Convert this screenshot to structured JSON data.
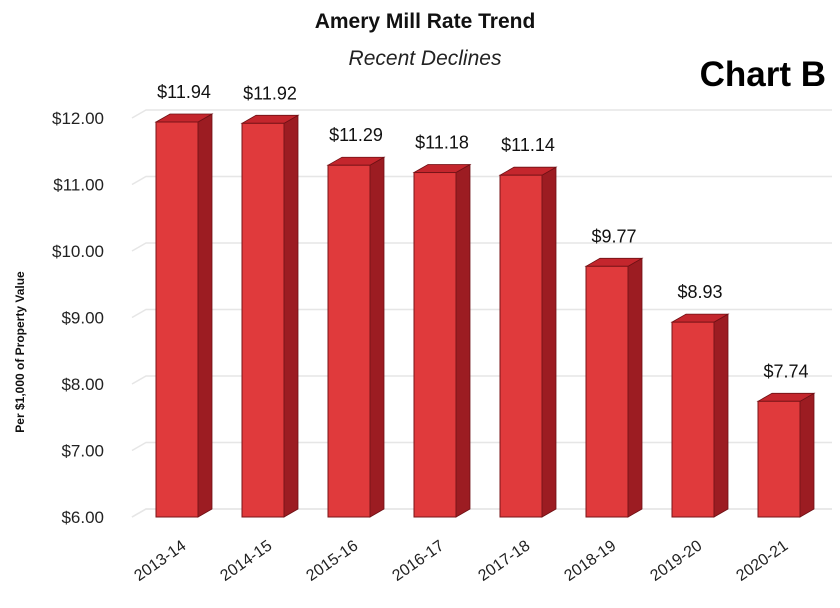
{
  "chart_data": {
    "type": "bar",
    "title": "Amery Mill Rate Trend",
    "subtitle": "Recent Declines",
    "badge": "Chart B",
    "ylabel": "Per $1,000  of Property Value",
    "xlabel": "",
    "categories": [
      "2013-14",
      "2014-15",
      "2015-16",
      "2016-17",
      "2017-18",
      "2018-19",
      "2019-20",
      "2020-21"
    ],
    "values": [
      11.94,
      11.92,
      11.29,
      11.18,
      11.14,
      9.77,
      8.93,
      7.74
    ],
    "value_labels": [
      "$11.94",
      "$11.92",
      "$11.29",
      "$11.18",
      "$11.14",
      "$9.77",
      "$8.93",
      "$7.74"
    ],
    "ylim": [
      6,
      12
    ],
    "yticks": [
      6,
      7,
      8,
      9,
      10,
      11,
      12
    ],
    "ytick_labels": [
      "$6.00",
      "$7.00",
      "$8.00",
      "$9.00",
      "$10.00",
      "$11.00",
      "$12.00"
    ],
    "grid": true,
    "legend": "none",
    "colors": {
      "bar_front": "#e03a3c",
      "bar_side": "#9c1c22",
      "bar_top": "#c4262d",
      "grid": "#e6e6e6"
    }
  }
}
